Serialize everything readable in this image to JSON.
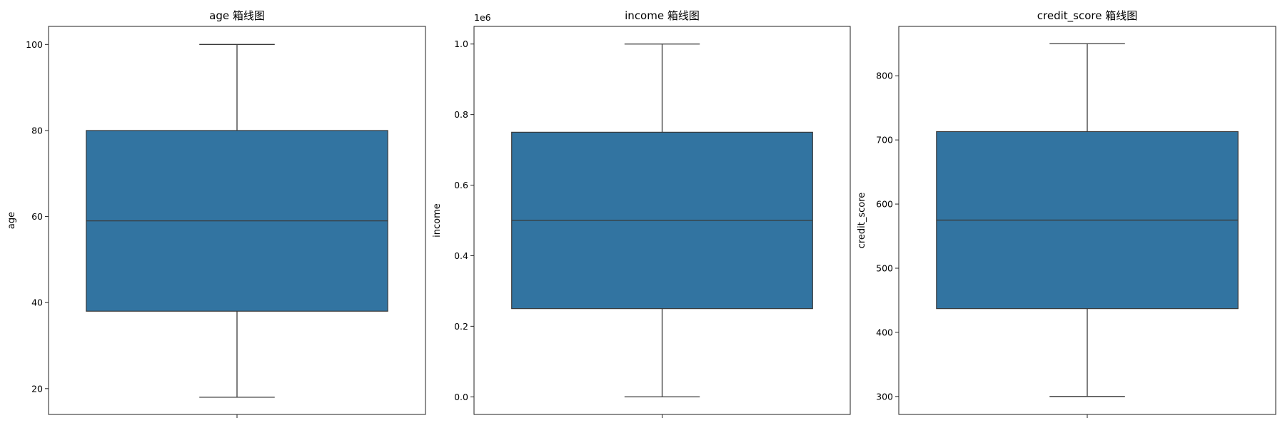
{
  "colors": {
    "box_fill": "#3274a1",
    "line": "#3a3a3a"
  },
  "chart_data": [
    {
      "type": "box",
      "title": "age 箱线图",
      "ylabel": "age",
      "ylim": [
        14,
        104.2
      ],
      "yticks": [
        20,
        40,
        60,
        80,
        100
      ],
      "tick_labels": [
        "20",
        "40",
        "60",
        "80",
        "100"
      ],
      "offset_text": "",
      "stats": {
        "whisker_low": 18,
        "q1": 38,
        "median": 59,
        "q3": 80,
        "whisker_high": 100
      }
    },
    {
      "type": "box",
      "title": "income 箱线图",
      "ylabel": "income",
      "ylim": [
        -0.05,
        1.05
      ],
      "yticks": [
        0.0,
        0.2,
        0.4,
        0.6,
        0.8,
        1.0
      ],
      "tick_labels": [
        "0.0",
        "0.2",
        "0.4",
        "0.6",
        "0.8",
        "1.0"
      ],
      "offset_text": "1e6",
      "stats": {
        "whisker_low": 0.0,
        "q1": 0.25,
        "median": 0.5,
        "q3": 0.75,
        "whisker_high": 1.0
      }
    },
    {
      "type": "box",
      "title": "credit_score 箱线图",
      "ylabel": "credit_score",
      "ylim": [
        272,
        877
      ],
      "yticks": [
        300,
        400,
        500,
        600,
        700,
        800
      ],
      "tick_labels": [
        "300",
        "400",
        "500",
        "600",
        "700",
        "800"
      ],
      "offset_text": "",
      "stats": {
        "whisker_low": 300,
        "q1": 437,
        "median": 575,
        "q3": 713,
        "whisker_high": 850
      }
    }
  ]
}
